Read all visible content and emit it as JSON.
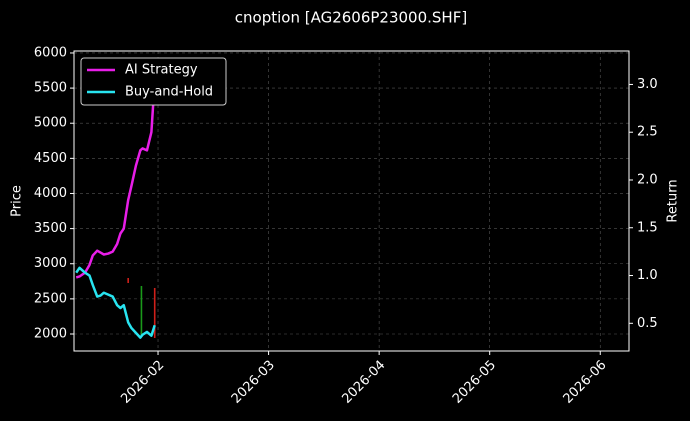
{
  "chart_data": {
    "type": "line",
    "title": "cnoption [AG2606P23000.SHF]",
    "ylabel": "Price",
    "y2label": "Return",
    "xlim": [
      0.24,
      5.26
    ],
    "xticks": [
      {
        "value": 1,
        "label": "2026-02"
      },
      {
        "value": 2,
        "label": "2026-03"
      },
      {
        "value": 3,
        "label": "2026-04"
      },
      {
        "value": 4,
        "label": "2026-05"
      },
      {
        "value": 5,
        "label": "2026-06"
      }
    ],
    "ylim": [
      1758,
      6028
    ],
    "yticks": [
      2000,
      2500,
      3000,
      3500,
      4000,
      4500,
      5000,
      5500,
      6000
    ],
    "y2lim": [
      0.21,
      3.35
    ],
    "y2ticks": [
      0.5,
      1.0,
      1.5,
      2.0,
      2.5,
      3.0
    ],
    "grid": true,
    "legend": "upper left",
    "x": [
      0.26,
      0.29,
      0.34,
      0.38,
      0.41,
      0.45,
      0.48,
      0.51,
      0.55,
      0.59,
      0.63,
      0.66,
      0.69,
      0.73,
      0.76,
      0.8,
      0.84,
      0.86,
      0.9,
      0.94,
      0.97
    ],
    "series": [
      {
        "name": "AI Strategy",
        "color": "#e81ee8",
        "axis": "y2",
        "values": [
          0.98,
          0.99,
          1.03,
          1.11,
          1.21,
          1.26,
          1.24,
          1.22,
          1.23,
          1.25,
          1.33,
          1.44,
          1.49,
          1.79,
          1.94,
          2.15,
          2.31,
          2.33,
          2.31,
          2.5,
          3.04
        ]
      },
      {
        "name": "Buy-and-Hold",
        "color": "#28e4f0",
        "axis": "y2",
        "values": [
          1.03,
          1.08,
          1.03,
          1.0,
          0.9,
          0.78,
          0.79,
          0.82,
          0.8,
          0.78,
          0.69,
          0.66,
          0.69,
          0.51,
          0.45,
          0.4,
          0.35,
          0.38,
          0.41,
          0.37,
          0.48
        ]
      }
    ],
    "candles": [
      {
        "x": 0.73,
        "high": 2797,
        "low": 2726,
        "color": "#d0201a"
      },
      {
        "x": 0.85,
        "high": 2683,
        "low": 1972,
        "color": "#1a9a1a"
      },
      {
        "x": 0.97,
        "high": 2655,
        "low": 1943,
        "color": "#d0201a"
      }
    ]
  }
}
